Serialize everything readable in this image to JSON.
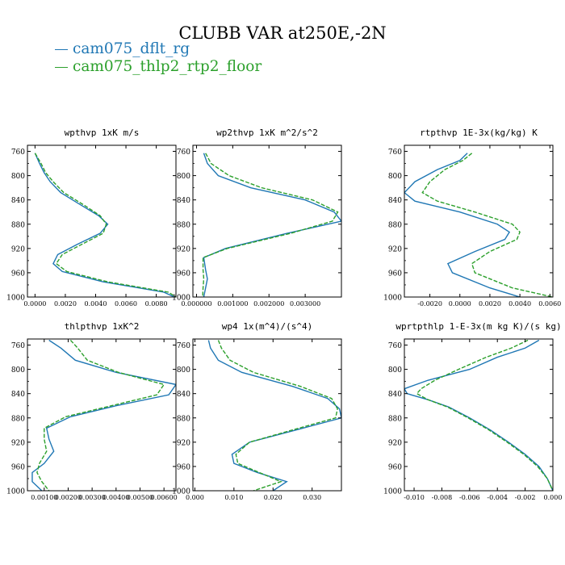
{
  "title": "CLUBB VAR at250E,-2N",
  "legend": [
    {
      "name": "cam075_dflt_rg",
      "color": "#1f77b4"
    },
    {
      "name": "cam075_thlp2_rtp2_floor",
      "color": "#2ca02c"
    }
  ],
  "chart_data": [
    {
      "type": "line",
      "title": "wpthvp  1xK m/s",
      "ylim": [
        1000,
        750
      ],
      "ylim_note": "pressure axis, increasing downward",
      "xlim": [
        -0.0005,
        0.0093
      ],
      "yticks": [
        760,
        800,
        840,
        880,
        920,
        960,
        1000
      ],
      "xticks": [
        0.0,
        0.002,
        0.004,
        0.006,
        0.008
      ],
      "xticklabels": [
        "0.0000",
        "0.0020",
        "0.0040",
        "0.0060",
        "0.0080"
      ],
      "y": [
        763,
        780,
        795,
        810,
        828,
        848,
        866,
        880,
        895,
        913,
        930,
        945,
        958,
        975,
        992,
        1000
      ],
      "series": [
        {
          "name": "cam075_dflt_rg",
          "x": [
            0.0,
            0.0003,
            0.0006,
            0.001,
            0.0017,
            0.003,
            0.0042,
            0.0048,
            0.0043,
            0.0028,
            0.0015,
            0.0012,
            0.0018,
            0.0045,
            0.0085,
            0.0092
          ]
        },
        {
          "name": "cam075_thlp2_rtp2_floor",
          "x": [
            0.0,
            0.0004,
            0.0007,
            0.0012,
            0.0019,
            0.0032,
            0.0043,
            0.0047,
            0.0045,
            0.0031,
            0.0018,
            0.0014,
            0.0021,
            0.0048,
            0.0088,
            0.0093
          ]
        }
      ]
    },
    {
      "type": "line",
      "title": "wp2thvp  1xK m^2/s^2",
      "ylim": [
        1000,
        750
      ],
      "xlim": [
        -0.0001,
        0.004
      ],
      "yticks": [
        760,
        800,
        840,
        880,
        920,
        960,
        1000
      ],
      "xticks": [
        0.0,
        0.001,
        0.002,
        0.003
      ],
      "xticklabels": [
        "0.000000",
        "0.001000",
        "0.002000",
        "0.003000"
      ],
      "y": [
        763,
        780,
        800,
        820,
        840,
        860,
        875,
        895,
        920,
        935,
        955,
        970,
        985,
        1000
      ],
      "series": [
        {
          "name": "cam075_dflt_rg",
          "x": [
            0.0002,
            0.0003,
            0.0006,
            0.0015,
            0.003,
            0.0038,
            0.004,
            0.0025,
            0.0008,
            0.0002,
            0.00025,
            0.0003,
            0.00025,
            0.0002
          ]
        },
        {
          "name": "cam075_thlp2_rtp2_floor",
          "x": [
            0.00025,
            0.0004,
            0.0009,
            0.0018,
            0.0032,
            0.0039,
            0.00375,
            0.0026,
            0.00085,
            0.00018,
            0.00018,
            0.0002,
            0.00018,
            0.00017
          ]
        }
      ]
    },
    {
      "type": "line",
      "title": "rtpthvp  1E-3x(kg/kg) K",
      "ylim": [
        1000,
        750
      ],
      "xlim": [
        -0.0037,
        0.0062
      ],
      "yticks": [
        760,
        800,
        840,
        880,
        920,
        960,
        1000
      ],
      "xticks": [
        -0.002,
        0.0,
        0.002,
        0.004,
        0.006
      ],
      "xticklabels": [
        "-0.0020",
        "0.0000",
        "0.0020",
        "0.0040",
        "0.0060"
      ],
      "y": [
        763,
        775,
        790,
        810,
        828,
        842,
        860,
        880,
        893,
        905,
        925,
        945,
        960,
        985,
        1000
      ],
      "series": [
        {
          "name": "cam075_dflt_rg",
          "x": [
            0.0005,
            0.0,
            -0.0015,
            -0.003,
            -0.0037,
            -0.003,
            0.0,
            0.0025,
            0.0033,
            0.003,
            0.001,
            -0.0008,
            -0.0005,
            0.002,
            0.004
          ]
        },
        {
          "name": "cam075_thlp2_rtp2_floor",
          "x": [
            0.0008,
            0.0002,
            -0.001,
            -0.002,
            -0.0025,
            -0.0015,
            0.001,
            0.0035,
            0.004,
            0.0038,
            0.002,
            0.0008,
            0.001,
            0.0035,
            0.0062
          ]
        }
      ]
    },
    {
      "type": "line",
      "title": "thlpthvp  1xK^2",
      "ylim": [
        1000,
        750
      ],
      "xlim": [
        0.0003,
        0.0065
      ],
      "yticks": [
        760,
        800,
        840,
        880,
        920,
        960,
        1000
      ],
      "xticks": [
        0.001,
        0.002,
        0.003,
        0.004,
        0.005,
        0.006
      ],
      "xticklabels": [
        "0.00100",
        "0.00200",
        "0.00300",
        "0.00400",
        "0.00500",
        "0.00600"
      ],
      "y": [
        752,
        765,
        785,
        805,
        825,
        842,
        860,
        878,
        897,
        915,
        935,
        955,
        970,
        985,
        1000
      ],
      "series": [
        {
          "name": "cam075_dflt_rg",
          "x": [
            0.0012,
            0.0017,
            0.0023,
            0.004,
            0.0065,
            0.0062,
            0.004,
            0.0021,
            0.0011,
            0.0012,
            0.0014,
            0.001,
            0.0005,
            0.0005,
            0.0009
          ]
        },
        {
          "name": "cam075_thlp2_rtp2_floor",
          "x": [
            0.0021,
            0.0024,
            0.0028,
            0.0041,
            0.006,
            0.0057,
            0.0038,
            0.0019,
            0.001,
            0.001,
            0.0011,
            0.0008,
            0.0007,
            0.0009,
            0.0012
          ]
        }
      ]
    },
    {
      "type": "line",
      "title": "wp4  1x(m^4)/(s^4)",
      "ylim": [
        1000,
        750
      ],
      "xlim": [
        -0.0005,
        0.0375
      ],
      "yticks": [
        760,
        800,
        840,
        880,
        920,
        960,
        1000
      ],
      "xticks": [
        0.0,
        0.01,
        0.02,
        0.03
      ],
      "xticklabels": [
        "0.000",
        "0.010",
        "0.020",
        "0.030"
      ],
      "y": [
        752,
        765,
        785,
        805,
        828,
        848,
        865,
        880,
        898,
        920,
        940,
        955,
        970,
        985,
        1000
      ],
      "series": [
        {
          "name": "cam075_dflt_rg",
          "x": [
            0.0035,
            0.004,
            0.006,
            0.012,
            0.025,
            0.034,
            0.037,
            0.0375,
            0.027,
            0.014,
            0.0095,
            0.01,
            0.016,
            0.0235,
            0.02
          ]
        },
        {
          "name": "cam075_thlp2_rtp2_floor",
          "x": [
            0.006,
            0.0068,
            0.009,
            0.015,
            0.027,
            0.035,
            0.0365,
            0.036,
            0.026,
            0.014,
            0.0105,
            0.011,
            0.0165,
            0.022,
            0.015
          ]
        }
      ]
    },
    {
      "type": "line",
      "title": "wprtpthlp  1-E-3x(m kg K)/(s kg)",
      "ylim": [
        1000,
        750
      ],
      "xlim": [
        -0.0107,
        0.0
      ],
      "yticks": [
        760,
        800,
        840,
        880,
        920,
        960,
        1000
      ],
      "xticks": [
        -0.01,
        -0.008,
        -0.006,
        -0.004,
        -0.002,
        0.0
      ],
      "xticklabels": [
        "-0.010",
        "-0.008",
        "-0.006",
        "-0.004",
        "-0.002",
        "0.000"
      ],
      "y": [
        752,
        765,
        780,
        800,
        818,
        832,
        840,
        850,
        862,
        880,
        900,
        920,
        940,
        960,
        980,
        1000
      ],
      "series": [
        {
          "name": "cam075_dflt_rg",
          "x": [
            -0.001,
            -0.002,
            -0.004,
            -0.006,
            -0.009,
            -0.0107,
            -0.0105,
            -0.009,
            -0.0075,
            -0.006,
            -0.0045,
            -0.0032,
            -0.002,
            -0.001,
            -0.0004,
            0.0
          ]
        },
        {
          "name": "cam075_thlp2_rtp2_floor",
          "x": [
            -0.0018,
            -0.003,
            -0.0048,
            -0.0068,
            -0.0085,
            -0.0095,
            -0.0098,
            -0.009,
            -0.0076,
            -0.0061,
            -0.0046,
            -0.0033,
            -0.0021,
            -0.0011,
            -0.0004,
            0.0
          ]
        }
      ]
    }
  ]
}
